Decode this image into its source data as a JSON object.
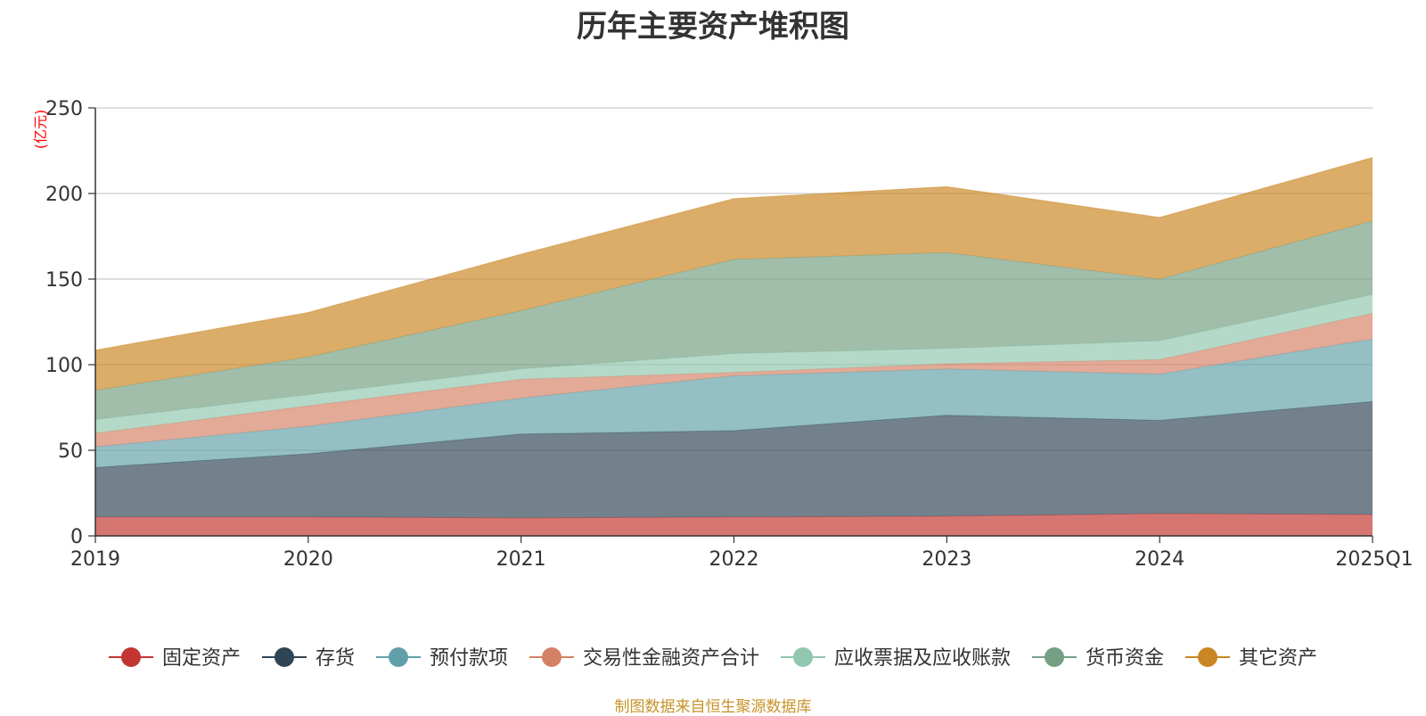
{
  "title": "历年主要资产堆积图",
  "source": "制图数据来自恒生聚源数据库",
  "chart_data": {
    "type": "area",
    "stacked": true,
    "title": "历年主要资产堆积图",
    "ylabel": "(亿元)",
    "ylim": [
      0,
      250
    ],
    "yticks": [
      "0",
      "50",
      "100",
      "150",
      "200",
      "250"
    ],
    "categories": [
      "2019",
      "2020",
      "2021",
      "2022",
      "2023",
      "2024",
      "2025Q1"
    ],
    "grid": true,
    "legend_position": "bottom",
    "series": [
      {
        "name": "固定资产",
        "color": "#c23531",
        "values": [
          11,
          11,
          10.5,
          11,
          11.5,
          13,
          12.5
        ]
      },
      {
        "name": "存货",
        "color": "#2f4554",
        "values": [
          29,
          37,
          49,
          50.5,
          59,
          54.5,
          66
        ]
      },
      {
        "name": "预付款项",
        "color": "#61a0a8",
        "values": [
          12,
          16,
          21,
          32,
          27,
          27,
          36.5
        ]
      },
      {
        "name": "交易性金融资产合计",
        "color": "#d48265",
        "values": [
          8,
          12,
          11,
          2,
          3,
          8.5,
          15
        ]
      },
      {
        "name": "应收票据及应收账款",
        "color": "#91c7ae",
        "values": [
          8,
          6.5,
          6,
          11,
          9,
          11,
          11
        ]
      },
      {
        "name": "货币资金",
        "color": "#749f83",
        "values": [
          17,
          22,
          34,
          55,
          56,
          36,
          43
        ]
      },
      {
        "name": "其它资产",
        "color": "#ca8622",
        "values": [
          23.5,
          26,
          33,
          35.5,
          38.5,
          36,
          37
        ]
      }
    ]
  }
}
